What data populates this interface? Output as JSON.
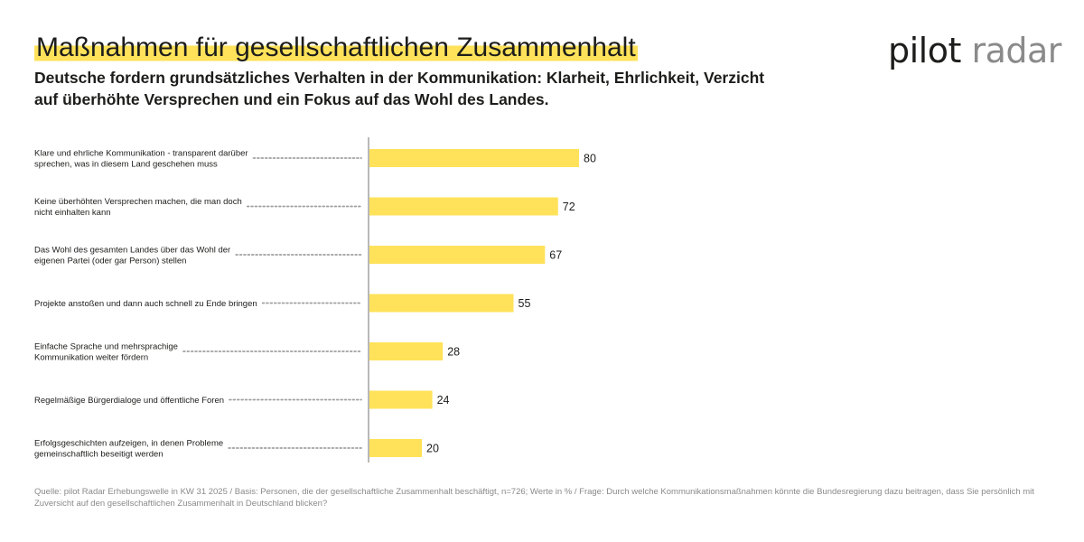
{
  "header": {
    "title": "Maßnahmen für gesellschaftlichen Zusammenhalt",
    "subtitle": "Deutsche fordern grundsätzliches Verhalten in der Kommunikation: Klarheit, Ehrlichkeit, Verzicht auf überhöhte Versprechen und ein Fokus auf das Wohl des Landes."
  },
  "logo": {
    "part1": "pilot",
    "part2": "radar"
  },
  "colors": {
    "bar": "#ffe25a",
    "accent": "#ffe25a",
    "text": "#1d1d1b",
    "muted": "#8a8a8a"
  },
  "chart_data": {
    "type": "bar",
    "orientation": "horizontal",
    "categories": [
      [
        "Klare und ehrliche Kommunikation - transparent darüber",
        "sprechen, was in diesem Land geschehen muss"
      ],
      [
        "Keine überhöhten Versprechen machen, die man doch",
        "nicht einhalten kann"
      ],
      [
        "Das Wohl des gesamten Landes über das Wohl der",
        "eigenen Partei (oder gar Person) stellen"
      ],
      [
        "Projekte anstoßen und dann auch schnell zu Ende bringen"
      ],
      [
        "Einfache Sprache und mehrsprachige",
        "Kommunikation weiter fördern"
      ],
      [
        "Regelmäßige Bürgerdialoge und öffentliche Foren"
      ],
      [
        "Erfolgsgeschichten aufzeigen, in denen Probleme",
        "gemeinschaftlich beseitigt werden"
      ]
    ],
    "values": [
      80,
      72,
      67,
      55,
      28,
      24,
      20
    ],
    "xlim": [
      0,
      100
    ],
    "grid": false
  },
  "footnote": "Quelle: pilot Radar Erhebungswelle in KW 31 2025 / Basis: Personen, die der gesellschaftliche Zusammenhalt beschäftigt, n=726; Werte in % / Frage: Durch welche Kommunikationsmaßnahmen könnte die Bundesregierung dazu beitragen, dass Sie persönlich mit Zuversicht auf den gesellschaftlichen Zusammenhalt in Deutschland blicken?"
}
